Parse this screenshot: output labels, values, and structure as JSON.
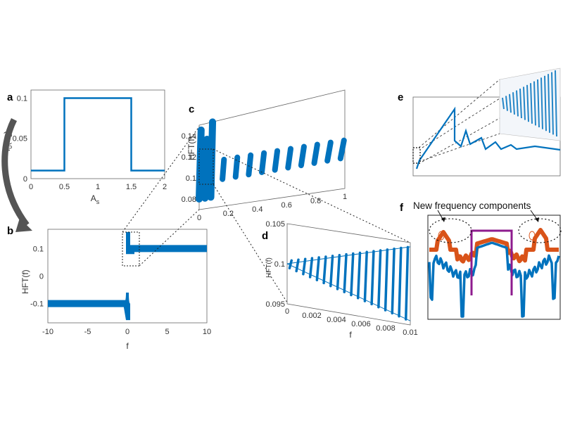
{
  "chart_data": [
    {
      "panel": "a",
      "type": "line",
      "x": [
        0,
        0.5,
        0.5,
        1.5,
        1.5,
        2
      ],
      "y": [
        0.01,
        0.01,
        0.1,
        0.1,
        0.01,
        0.01
      ],
      "xlabel": "A",
      "xlabel_sub": "s",
      "ylabel": "f",
      "ylabel_sub": "0",
      "ylabel_arg": "(A",
      "ylabel_arg_sub": "s",
      "ylabel_close": ")",
      "xlim": [
        0,
        2
      ],
      "ylim": [
        0,
        0.11
      ],
      "xticks": [
        "0",
        "0.5",
        "1",
        "1.5",
        "2"
      ],
      "yticks": [
        "0",
        "0.05",
        "0.1"
      ],
      "color": "#0072bd"
    },
    {
      "panel": "b",
      "type": "scatter",
      "series": [
        {
          "x": [
            -10,
            0
          ],
          "y": [
            -0.1,
            -0.1
          ]
        },
        {
          "x": [
            0,
            10
          ],
          "y": [
            0.1,
            0.1
          ]
        }
      ],
      "xlabel": "f",
      "ylabel": "HFT(f)",
      "xlim": [
        -10,
        10
      ],
      "ylim": [
        -0.17,
        0.17
      ],
      "xticks": [
        "-10",
        "-5",
        "0",
        "5",
        "10"
      ],
      "yticks": [
        "0.1",
        "0",
        "-0.1"
      ],
      "color": "#0072bd"
    },
    {
      "panel": "c",
      "type": "scatter",
      "ylabel": "HFT(f)",
      "xlim": [
        0,
        1
      ],
      "ylim": [
        0.07,
        0.15
      ],
      "xticks": [
        "0",
        "0.2",
        "0.4",
        "0.6",
        "0.8",
        "1"
      ],
      "yticks": [
        "0.08",
        "0.1",
        "0.12",
        "0.14"
      ],
      "color": "#0072bd"
    },
    {
      "panel": "d",
      "type": "scatter",
      "xlabel": "f",
      "ylabel": "HFT(f)",
      "xlim": [
        0,
        0.01
      ],
      "ylim": [
        0.095,
        0.105
      ],
      "xticks": [
        "0",
        "0.002",
        "0.004",
        "0.006",
        "0.008",
        "0.01"
      ],
      "yticks": [
        "0.105",
        "0.1",
        "0.095"
      ],
      "color": "#0072bd"
    },
    {
      "panel": "e",
      "type": "line",
      "color": "#0072bd"
    },
    {
      "panel": "f",
      "type": "line",
      "annotation": "New frequency components",
      "colors": {
        "blue": "#0072bd",
        "orange": "#d95319",
        "purple": "#8e1b8e"
      }
    }
  ],
  "panel_labels": {
    "a": "a",
    "b": "b",
    "c": "c",
    "d": "d",
    "e": "e",
    "f": "f"
  }
}
